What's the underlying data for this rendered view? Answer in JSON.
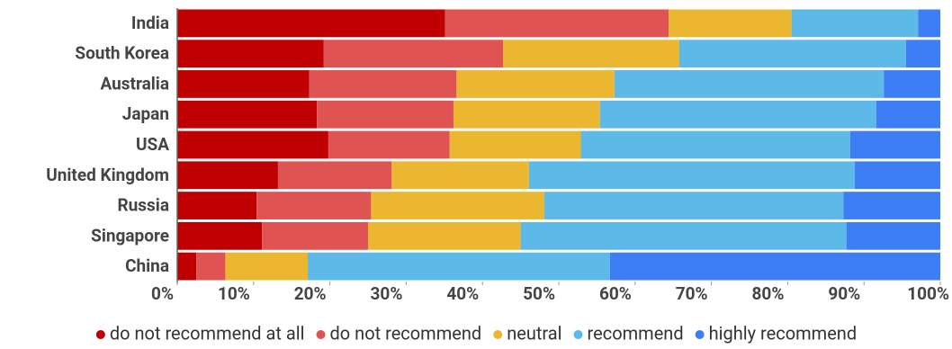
{
  "chart_data": {
    "type": "stacked_bar_horizontal",
    "categories": [
      "India",
      "South Korea",
      "Australia",
      "Japan",
      "USA",
      "United Kingdom",
      "Russia",
      "Singapore",
      "China"
    ],
    "series": [
      {
        "name": "do not recommend at all",
        "color": "#c00000",
        "values": [
          35.1,
          19.2,
          17.3,
          18.3,
          19.8,
          13.2,
          10.4,
          11.1,
          2.5
        ]
      },
      {
        "name": "do not recommend",
        "color": "#e05353",
        "values": [
          29.3,
          23.5,
          19.3,
          17.9,
          15.9,
          14.9,
          15.0,
          13.9,
          3.8
        ]
      },
      {
        "name": "neutral",
        "color": "#ecb730",
        "values": [
          16.1,
          23.1,
          20.7,
          19.2,
          17.2,
          18.0,
          22.7,
          20.0,
          10.8
        ]
      },
      {
        "name": "recommend",
        "color": "#5db9e8",
        "values": [
          16.6,
          29.7,
          35.3,
          36.2,
          35.3,
          42.7,
          39.2,
          42.7,
          39.6
        ]
      },
      {
        "name": "highly recommend",
        "color": "#3e7ef4",
        "values": [
          2.9,
          4.5,
          7.4,
          8.4,
          11.8,
          11.2,
          12.7,
          12.3,
          43.3
        ]
      }
    ],
    "xlim": [
      0,
      100
    ],
    "xticks": [
      {
        "value": 0,
        "label": "0%"
      },
      {
        "value": 10,
        "label": "10%"
      },
      {
        "value": 20,
        "label": "20%"
      },
      {
        "value": 30,
        "label": "30%"
      },
      {
        "value": 40,
        "label": "40%"
      },
      {
        "value": 50,
        "label": "50%"
      },
      {
        "value": 60,
        "label": "60%"
      },
      {
        "value": 70,
        "label": "70%"
      },
      {
        "value": 80,
        "label": "80%"
      },
      {
        "value": 90,
        "label": "90%"
      },
      {
        "value": 100,
        "label": "100%"
      }
    ],
    "legend": "bottom"
  }
}
